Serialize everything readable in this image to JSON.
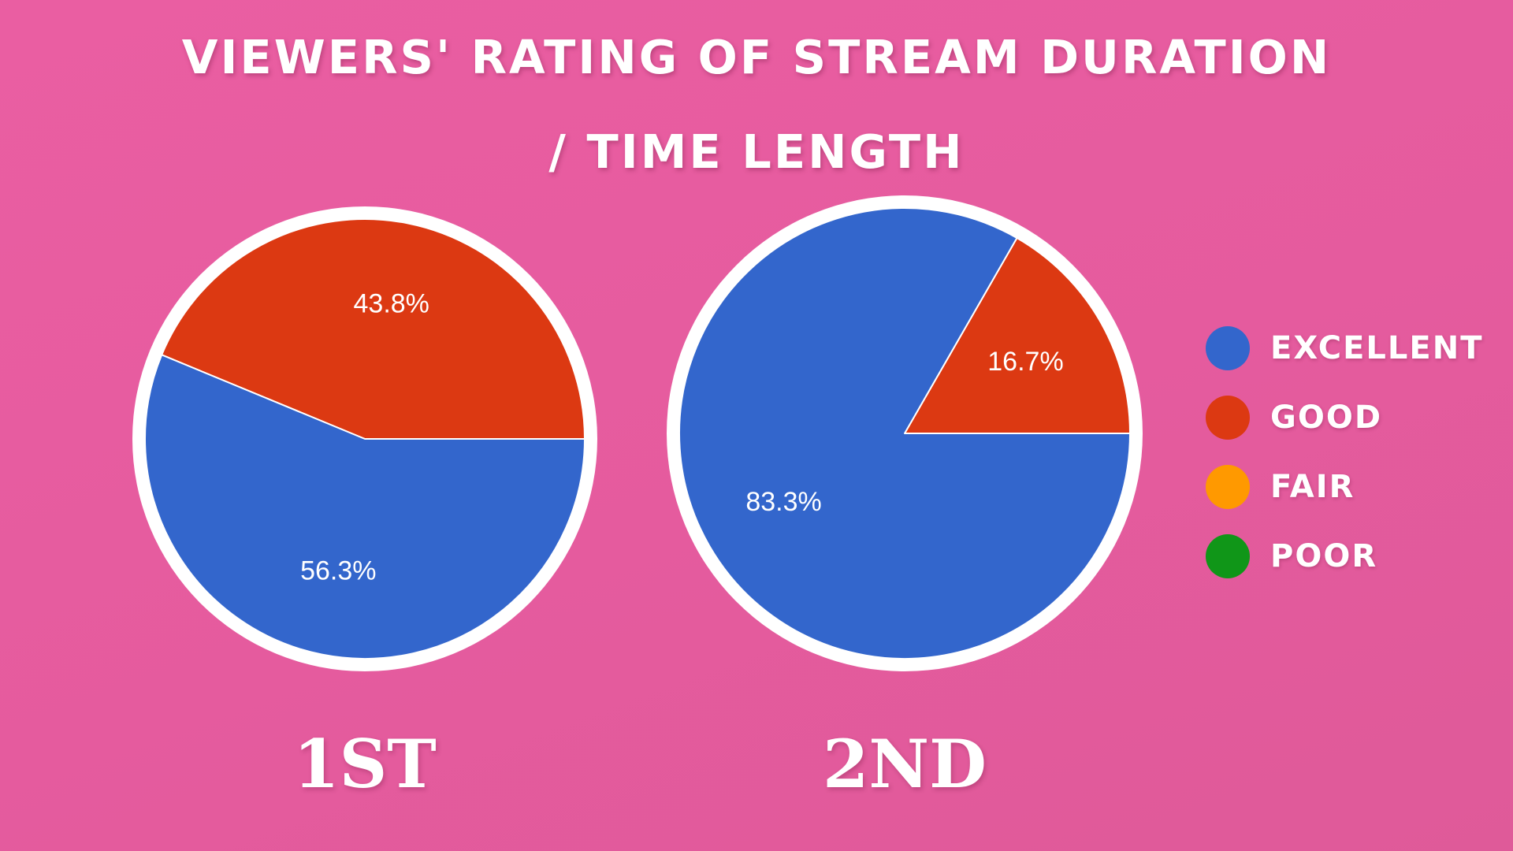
{
  "title": {
    "line1": "VIEWERS' RATING OF STREAM DURATION",
    "line2": "/ TIME LENGTH"
  },
  "legend": {
    "items": [
      {
        "label": "EXCELLENT",
        "color": "#3366cc"
      },
      {
        "label": "GOOD",
        "color": "#dc3912"
      },
      {
        "label": "FAIR",
        "color": "#ff9900"
      },
      {
        "label": "POOR",
        "color": "#109618"
      }
    ]
  },
  "chart_data": [
    {
      "type": "pie",
      "caption": "1ST",
      "slices": [
        {
          "name": "GOOD",
          "value": 43.8,
          "label": "43.8%",
          "color": "#dc3912"
        },
        {
          "name": "EXCELLENT",
          "value": 56.3,
          "label": "56.3%",
          "color": "#3366cc"
        }
      ]
    },
    {
      "type": "pie",
      "caption": "2ND",
      "slices": [
        {
          "name": "GOOD",
          "value": 16.7,
          "label": "16.7%",
          "color": "#dc3912"
        },
        {
          "name": "EXCELLENT",
          "value": 83.3,
          "label": "83.3%",
          "color": "#3366cc"
        }
      ]
    }
  ]
}
